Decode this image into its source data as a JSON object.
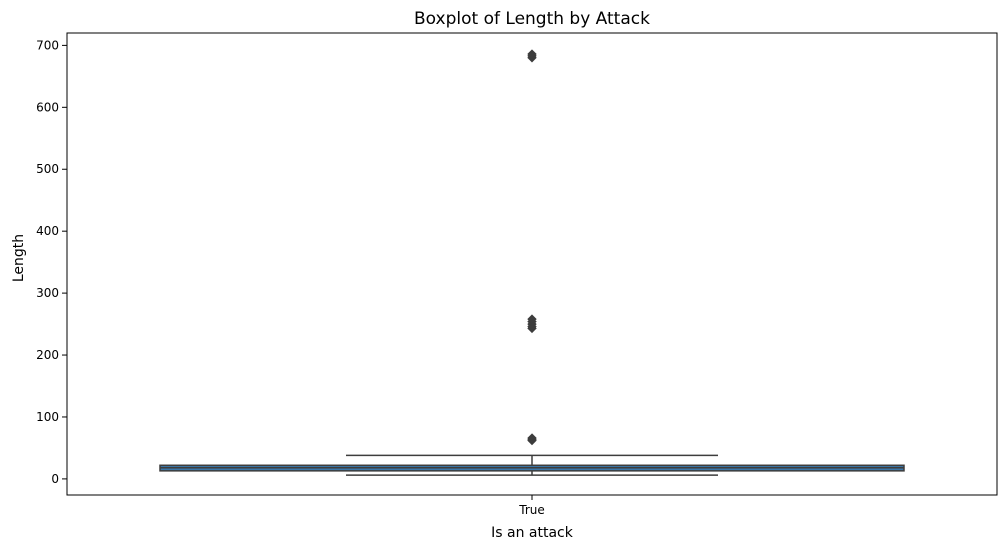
{
  "chart_data": {
    "type": "boxplot",
    "title": "Boxplot of Length by Attack",
    "xlabel": "Is an attack",
    "ylabel": "Length",
    "categories": [
      "True"
    ],
    "ylim": [
      -26,
      720
    ],
    "yticks": [
      0,
      100,
      200,
      300,
      400,
      500,
      600,
      700
    ],
    "grid": false,
    "boxes": [
      {
        "category": "True",
        "q1": 13,
        "median": 18,
        "q3": 22,
        "whisker_low": 6,
        "whisker_high": 38,
        "outliers": [
          62,
          64,
          66,
          243,
          246,
          250,
          254,
          258,
          680,
          683,
          686
        ]
      }
    ],
    "colors": {
      "box_fill": "#3a75a7",
      "line": "#3d3d3d",
      "outlier": "#3d3d3d"
    }
  }
}
